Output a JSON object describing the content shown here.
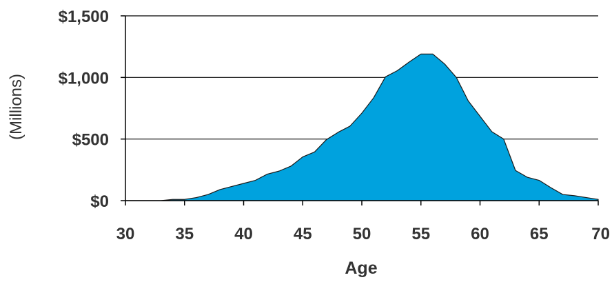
{
  "chart_data": {
    "type": "area",
    "title": "",
    "xlabel": "Age",
    "ylabel": "(Millions)",
    "xlim": [
      30,
      70
    ],
    "ylim": [
      0,
      1500
    ],
    "x_ticks": [
      30,
      35,
      40,
      45,
      50,
      55,
      60,
      65,
      70
    ],
    "x_tick_labels": [
      "30",
      "35",
      "40",
      "45",
      "50",
      "55",
      "60",
      "65",
      "70"
    ],
    "y_ticks": [
      0,
      500,
      1000,
      1500
    ],
    "y_tick_labels": [
      "$0",
      "$500",
      "$1,000",
      "$1,500"
    ],
    "grid": "horizontal",
    "legend": "none",
    "fill_color": "#00A2DE",
    "series": [
      {
        "x": [
          30,
          31,
          32,
          33,
          34,
          35,
          36,
          37,
          38,
          39,
          40,
          41,
          42,
          43,
          44,
          45,
          46,
          47,
          48,
          49,
          50,
          51,
          52,
          53,
          54,
          55,
          56,
          57,
          58,
          59,
          60,
          61,
          62,
          63,
          64,
          65,
          66,
          67,
          68,
          69,
          70
        ],
        "values": [
          0,
          0,
          0,
          0,
          10,
          10,
          25,
          50,
          90,
          115,
          140,
          165,
          215,
          240,
          280,
          355,
          395,
          495,
          555,
          605,
          710,
          835,
          1005,
          1055,
          1125,
          1190,
          1190,
          1110,
          1000,
          810,
          685,
          560,
          500,
          245,
          190,
          165,
          105,
          50,
          40,
          25,
          10
        ]
      }
    ]
  }
}
